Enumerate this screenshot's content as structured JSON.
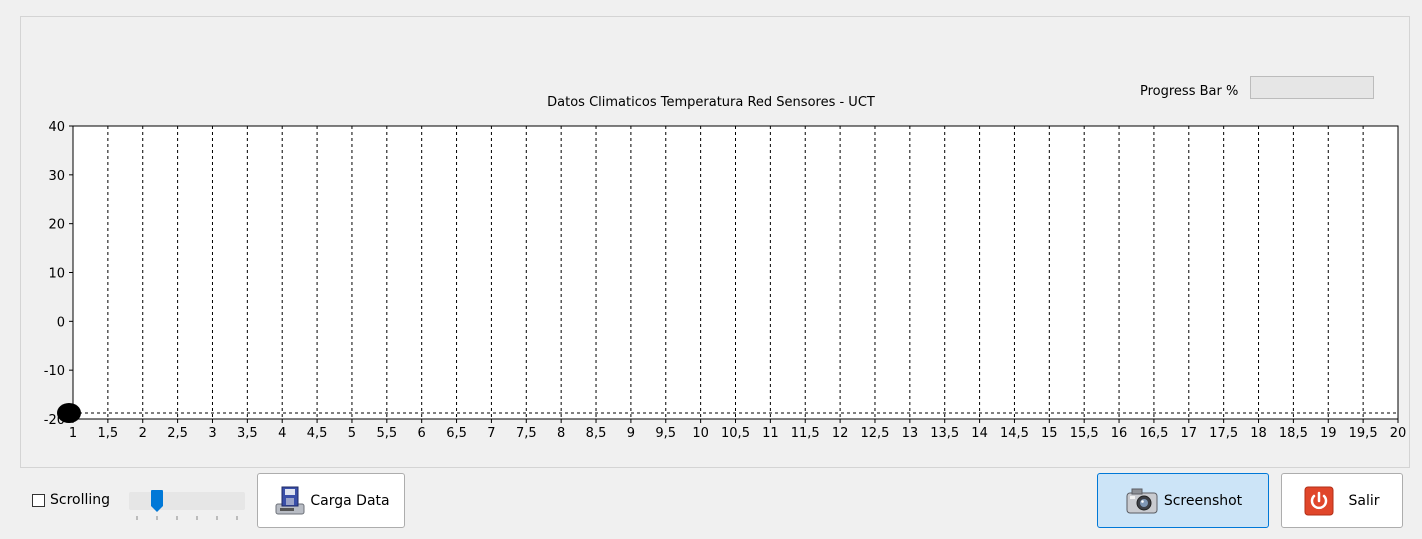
{
  "chart_data": {
    "type": "scatter",
    "title": "Datos Climaticos Temperatura Red Sensores - UCT",
    "xlabel": "",
    "ylabel": "",
    "xlim": [
      1,
      20
    ],
    "ylim": [
      -20,
      40
    ],
    "x_ticks": [
      "1",
      "1,5",
      "2",
      "2,5",
      "3",
      "3,5",
      "4",
      "4,5",
      "5",
      "5,5",
      "6",
      "6,5",
      "7",
      "7,5",
      "8",
      "8,5",
      "9",
      "9,5",
      "10",
      "10,5",
      "11",
      "11,5",
      "12",
      "12,5",
      "13",
      "13,5",
      "14",
      "14,5",
      "15",
      "15,5",
      "16",
      "16,5",
      "17",
      "17,5",
      "18",
      "18,5",
      "19",
      "19,5",
      "20"
    ],
    "y_ticks": [
      "40",
      "30",
      "20",
      "10",
      "0",
      "-10",
      "-20"
    ],
    "grid": "vertical dashed",
    "series": [
      {
        "x": [
          1
        ],
        "y": [
          -20
        ],
        "color": "#000000"
      }
    ]
  },
  "progress": {
    "label": "Progress Bar %",
    "value": 0
  },
  "controls": {
    "scrolling_label": "Scrolling",
    "scrolling_checked": false,
    "slider_value": 0.25,
    "carga_label": "Carga Data",
    "carga_icon": "floppy-disk-drive-icon",
    "screenshot_label": "Screenshot",
    "screenshot_icon": "camera-icon",
    "salir_label": "Salir",
    "salir_icon": "power-icon",
    "accent_color": "#0078d7",
    "salir_color": "#e0462a"
  }
}
